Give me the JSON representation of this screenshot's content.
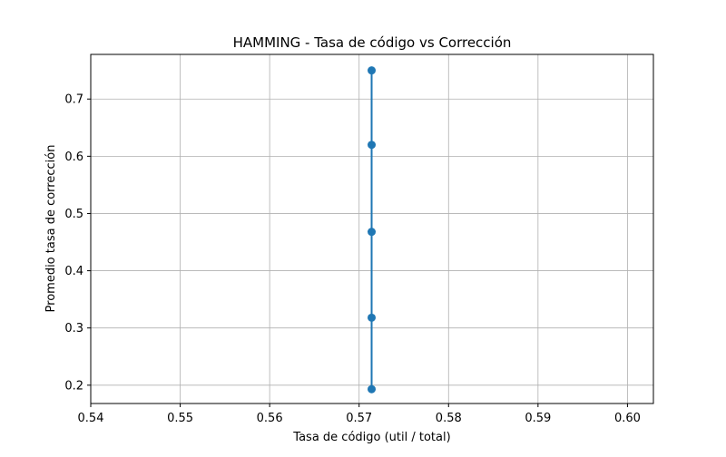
{
  "chart_data": {
    "type": "line",
    "title": "HAMMING - Tasa de código vs Corrección",
    "xlabel": "Tasa de código (util / total)",
    "ylabel": "Promedio tasa de corrección",
    "xlim": [
      0.54,
      0.6029
    ],
    "ylim": [
      0.168,
      0.778
    ],
    "x_ticks": [
      0.54,
      0.55,
      0.56,
      0.57,
      0.58,
      0.59,
      0.6
    ],
    "x_tick_labels": [
      "0.54",
      "0.55",
      "0.56",
      "0.57",
      "0.58",
      "0.59",
      "0.60"
    ],
    "y_ticks": [
      0.2,
      0.3,
      0.4,
      0.5,
      0.6,
      0.7
    ],
    "y_tick_labels": [
      "0.2",
      "0.3",
      "0.4",
      "0.5",
      "0.6",
      "0.7"
    ],
    "grid": true,
    "legend": "none",
    "series": [
      {
        "color": "#1f77b4",
        "marker": "circle",
        "x": [
          0.5714,
          0.5714,
          0.5714,
          0.5714,
          0.5714
        ],
        "y": [
          0.75,
          0.62,
          0.468,
          0.318,
          0.193
        ]
      }
    ]
  }
}
